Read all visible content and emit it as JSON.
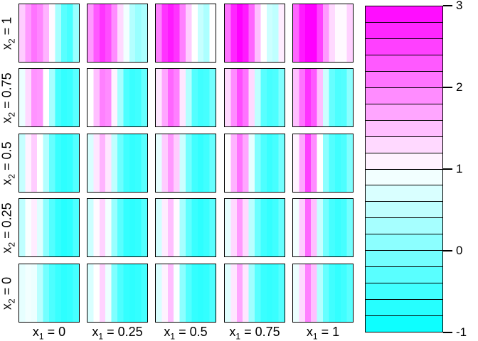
{
  "chart_data": {
    "type": "heatmap",
    "description": "5x5 grid of image panels; each panel shows vertical color stripes (10 stripes per panel, value profile over the panel's inner horizontal variable). Panel columns vary x1, panel rows vary x2. Shared discrete cyan-white-magenta colorbar on the right.",
    "x_axis_panel_labels": [
      {
        "pre": "x",
        "sub": "1",
        "post": " = 0"
      },
      {
        "pre": "x",
        "sub": "1",
        "post": " = 0.25"
      },
      {
        "pre": "x",
        "sub": "1",
        "post": " = 0.5"
      },
      {
        "pre": "x",
        "sub": "1",
        "post": " = 0.75"
      },
      {
        "pre": "x",
        "sub": "1",
        "post": " = 1"
      }
    ],
    "y_axis_panel_labels": [
      {
        "pre": "x",
        "sub": "2",
        "post": " = 1"
      },
      {
        "pre": "x",
        "sub": "2",
        "post": " = 0.75"
      },
      {
        "pre": "x",
        "sub": "2",
        "post": " = 0.5"
      },
      {
        "pre": "x",
        "sub": "2",
        "post": " = 0.25"
      },
      {
        "pre": "x",
        "sub": "2",
        "post": " = 0"
      }
    ],
    "x1_values": [
      0,
      0.25,
      0.5,
      0.75,
      1
    ],
    "x2_values": [
      1,
      0.75,
      0.5,
      0.25,
      0
    ],
    "value_range": [
      -1,
      3
    ],
    "colormap": {
      "name": "cyan-magenta",
      "low_color": "#00FFFF",
      "mid_color": "#FFFFFF",
      "high_color": "#FF00FF",
      "low_value": -1,
      "mid_value": 1,
      "high_value": 3
    },
    "stripes_per_panel": 10,
    "panels": {
      "rows": [
        {
          "x2": 1,
          "cells": [
            [
              1.4,
              1.8,
              2.1,
              1.95,
              1.6,
              1.05,
              0.3,
              -0.3,
              -0.45,
              0.2
            ],
            [
              1.8,
              2.3,
              2.6,
              2.4,
              1.9,
              1.3,
              0.9,
              0.4,
              0.2,
              0.35
            ],
            [
              2.0,
              2.6,
              2.8,
              2.6,
              2.0,
              1.4,
              1.0,
              0.55,
              0.35,
              1.0
            ],
            [
              2.1,
              2.7,
              3.0,
              2.8,
              2.2,
              1.5,
              1.0,
              0.6,
              0.5,
              1.15
            ],
            [
              2.2,
              2.8,
              3.0,
              3.0,
              2.5,
              1.8,
              1.3,
              1.05,
              1.05,
              1.35
            ]
          ]
        },
        {
          "x2": 0.75,
          "cells": [
            [
              0.85,
              1.3,
              1.85,
              1.8,
              1.0,
              0.3,
              -0.45,
              -0.6,
              -0.55,
              -0.3
            ],
            [
              1.0,
              1.5,
              2.0,
              1.9,
              1.1,
              0.3,
              -0.4,
              -0.55,
              -0.5,
              -0.2
            ],
            [
              1.2,
              1.7,
              2.2,
              2.0,
              1.2,
              0.4,
              -0.35,
              -0.5,
              -0.45,
              -0.1
            ],
            [
              1.3,
              1.9,
              2.4,
              2.1,
              1.3,
              0.5,
              -0.3,
              -0.45,
              -0.4,
              0.0
            ],
            [
              1.5,
              2.1,
              2.6,
              2.3,
              1.5,
              0.6,
              -0.2,
              -0.4,
              -0.35,
              0.1
            ]
          ]
        },
        {
          "x2": 0.5,
          "cells": [
            [
              0.55,
              1.1,
              1.4,
              1.0,
              0.4,
              -0.2,
              -0.55,
              -0.65,
              -0.6,
              -0.35
            ],
            [
              0.7,
              1.2,
              1.6,
              1.2,
              0.5,
              -0.15,
              -0.5,
              -0.6,
              -0.55,
              -0.3
            ],
            [
              0.8,
              1.4,
              1.8,
              1.4,
              0.6,
              -0.1,
              -0.5,
              -0.6,
              -0.5,
              -0.2
            ],
            [
              1.0,
              1.6,
              2.1,
              1.7,
              0.8,
              0.0,
              -0.4,
              -0.55,
              -0.45,
              -0.1
            ],
            [
              1.1,
              1.7,
              2.5,
              1.9,
              1.0,
              0.1,
              -0.35,
              -0.5,
              -0.4,
              0.0
            ]
          ]
        },
        {
          "x2": 0.25,
          "cells": [
            [
              0.5,
              0.95,
              1.15,
              0.75,
              0.1,
              -0.35,
              -0.6,
              -0.7,
              -0.65,
              -0.4
            ],
            [
              0.6,
              1.05,
              1.35,
              0.9,
              0.2,
              -0.3,
              -0.6,
              -0.65,
              -0.6,
              -0.35
            ],
            [
              0.65,
              1.15,
              1.5,
              1.05,
              0.3,
              -0.25,
              -0.55,
              -0.65,
              -0.55,
              -0.3
            ],
            [
              0.8,
              1.3,
              1.8,
              1.3,
              0.45,
              -0.15,
              -0.5,
              -0.6,
              -0.5,
              -0.2
            ],
            [
              0.9,
              1.4,
              2.2,
              1.5,
              0.55,
              -0.1,
              -0.45,
              -0.55,
              -0.45,
              -0.1
            ]
          ]
        },
        {
          "x2": 0,
          "cells": [
            [
              0.8,
              0.9,
              0.85,
              0.45,
              -0.1,
              -0.4,
              -0.55,
              -0.65,
              -0.6,
              -0.45
            ],
            [
              0.7,
              1.0,
              1.35,
              0.85,
              0.0,
              -0.4,
              -0.6,
              -0.65,
              -0.6,
              -0.45
            ],
            [
              0.7,
              1.1,
              1.5,
              0.95,
              0.1,
              -0.35,
              -0.6,
              -0.65,
              -0.6,
              -0.4
            ],
            [
              0.75,
              1.2,
              1.7,
              1.2,
              0.25,
              -0.3,
              -0.55,
              -0.6,
              -0.55,
              -0.35
            ],
            [
              0.85,
              1.3,
              2.0,
              1.5,
              0.4,
              -0.2,
              -0.5,
              -0.6,
              -0.5,
              -0.3
            ]
          ]
        }
      ]
    },
    "colorbar": {
      "segments": 20,
      "orientation": "vertical",
      "top_value": 3,
      "bottom_value": -1,
      "tick_values": [
        3,
        2,
        1,
        0,
        -1
      ],
      "tick_labels": [
        "3",
        "2",
        "1",
        "0",
        "-1"
      ]
    }
  }
}
